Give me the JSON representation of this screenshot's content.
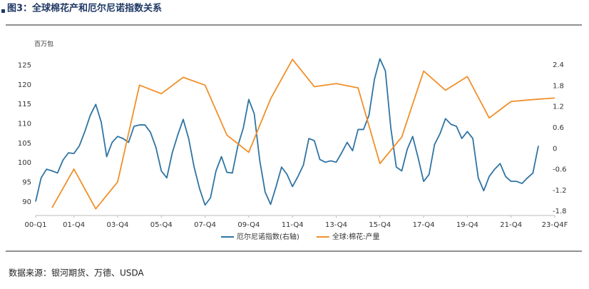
{
  "chart_data": {
    "type": "line",
    "title": "图3：全球棉花产和厄尔尼诺指数关系",
    "y_label": "百万包",
    "source": "数据来源：银河期货、万德、USDA",
    "xlim": [
      0,
      95
    ],
    "xticks": [
      {
        "value": 0,
        "label": "00-Q1"
      },
      {
        "value": 7,
        "label": "01-Q4"
      },
      {
        "value": 15,
        "label": "03-Q4"
      },
      {
        "value": 23,
        "label": "05-Q4"
      },
      {
        "value": 31,
        "label": "07-Q4"
      },
      {
        "value": 39,
        "label": "09-Q4"
      },
      {
        "value": 47,
        "label": "11-Q4"
      },
      {
        "value": 55,
        "label": "13-Q4"
      },
      {
        "value": 63,
        "label": "15-Q4"
      },
      {
        "value": 71,
        "label": "17-Q4"
      },
      {
        "value": 79,
        "label": "19-Q4"
      },
      {
        "value": 87,
        "label": "21-Q4"
      },
      {
        "value": 95,
        "label": "23-Q4F"
      }
    ],
    "ylim": [
      86.5,
      128
    ],
    "yticks": [
      90,
      95,
      100,
      105,
      110,
      115,
      120,
      125
    ],
    "y2lim": [
      -1.92,
      2.73
    ],
    "y2ticks": [
      -1.8,
      -1.2,
      -0.6,
      0,
      0.6,
      1.2,
      1.8,
      2.4
    ],
    "series": [
      {
        "name": "厄尔尼诺指数(右轴)",
        "color": "#2f74a3",
        "axis": "y2",
        "x": [
          0,
          1,
          2,
          3,
          4,
          5,
          6,
          7,
          8,
          9,
          10,
          11,
          12,
          13,
          14,
          15,
          16,
          17,
          18,
          19,
          20,
          21,
          22,
          23,
          24,
          25,
          26,
          27,
          28,
          29,
          30,
          31,
          32,
          33,
          34,
          35,
          36,
          37,
          38,
          39,
          40,
          41,
          42,
          43,
          44,
          45,
          46,
          47,
          48,
          49,
          50,
          51,
          52,
          53,
          54,
          55,
          56,
          57,
          58,
          59,
          60,
          61,
          62,
          63,
          64,
          65,
          66,
          67,
          68,
          69,
          70,
          71,
          72,
          73,
          74,
          75,
          76,
          77,
          78,
          79,
          80,
          81,
          82,
          83,
          84,
          85,
          86,
          87,
          88,
          89,
          90,
          91,
          92
        ],
        "values": [
          -1.52,
          -0.84,
          -0.59,
          -0.64,
          -0.7,
          -0.33,
          -0.12,
          -0.14,
          0.08,
          0.49,
          0.96,
          1.27,
          0.76,
          -0.23,
          0.18,
          0.35,
          0.29,
          0.18,
          0.64,
          0.68,
          0.68,
          0.47,
          0.04,
          -0.64,
          -0.84,
          -0.12,
          0.39,
          0.84,
          0.29,
          -0.53,
          -1.15,
          -1.62,
          -1.41,
          -0.64,
          -0.23,
          -0.68,
          -0.7,
          0.08,
          0.59,
          1.41,
          1.0,
          -0.33,
          -1.25,
          -1.6,
          -1.09,
          -0.53,
          -0.74,
          -1.09,
          -0.8,
          -0.47,
          0.29,
          0.23,
          -0.31,
          -0.39,
          -0.35,
          -0.39,
          -0.12,
          0.18,
          -0.06,
          0.55,
          0.55,
          0.96,
          1.99,
          2.58,
          2.23,
          0.59,
          -0.53,
          -0.64,
          -0.02,
          0.35,
          -0.27,
          -0.94,
          -0.74,
          0.12,
          0.43,
          0.86,
          0.7,
          0.64,
          0.29,
          0.49,
          0.29,
          -0.84,
          -1.21,
          -0.8,
          -0.59,
          -0.43,
          -0.8,
          -0.94,
          -0.94,
          -1.0,
          -0.84,
          -0.7,
          0.08
        ]
      },
      {
        "name": "全球:棉花:产量",
        "color": "#f0902a",
        "x": [
          3,
          7,
          11,
          15,
          19,
          23,
          27,
          31,
          35,
          39,
          43,
          47,
          51,
          55,
          59,
          63,
          67,
          71,
          75,
          79,
          83,
          87,
          91,
          95
        ],
        "values": [
          88.5,
          98.4,
          88.2,
          95.1,
          119.9,
          117.7,
          121.9,
          119.9,
          107.1,
          102.7,
          116.4,
          126.5,
          119.5,
          120.3,
          119.2,
          99.8,
          106.6,
          123.5,
          118.6,
          122.1,
          111.5,
          115.7,
          116.2,
          116.6
        ]
      }
    ]
  }
}
